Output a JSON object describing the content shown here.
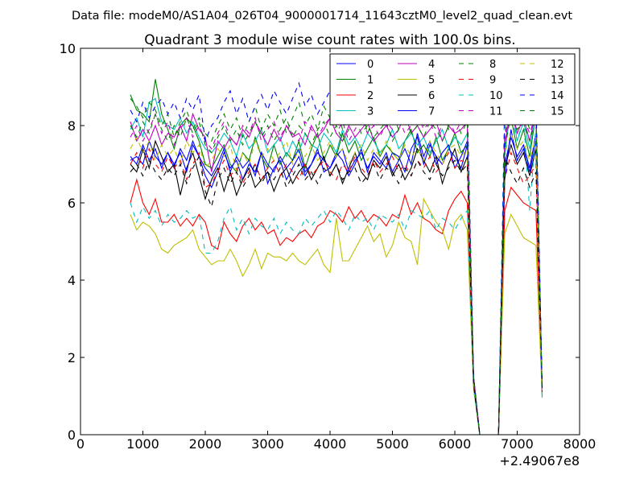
{
  "header_text": "Data file: modeM0/AS1A04_026T04_9000001714_11643cztM0_level2_quad_clean.evt",
  "chart_data": {
    "type": "line",
    "title": "Quadrant 3 module wise count rates with 100.0s bins.",
    "xlabel": "",
    "ylabel": "",
    "x_offset_label": "+2.49067e8",
    "xlim": [
      0,
      8000
    ],
    "ylim": [
      0,
      10
    ],
    "x_ticks": [
      0,
      1000,
      2000,
      3000,
      4000,
      5000,
      6000,
      7000,
      8000
    ],
    "y_ticks": [
      0,
      2,
      4,
      6,
      8,
      10
    ],
    "grid": false,
    "legend_placement": "top-right",
    "legend_columns": 4,
    "x": [
      800,
      900,
      1000,
      1100,
      1200,
      1300,
      1400,
      1500,
      1600,
      1700,
      1800,
      1900,
      2000,
      2100,
      2200,
      2300,
      2400,
      2500,
      2600,
      2700,
      2800,
      2900,
      3000,
      3100,
      3200,
      3300,
      3400,
      3500,
      3600,
      3700,
      3800,
      3900,
      4000,
      4100,
      4200,
      4300,
      4400,
      4500,
      4600,
      4700,
      4800,
      4900,
      5000,
      5100,
      5200,
      5300,
      5400,
      5500,
      5600,
      5700,
      5800,
      5900,
      6000,
      6100,
      6200,
      6300,
      6400,
      6500,
      6600,
      6700,
      6800,
      6900,
      7000,
      7100,
      7200,
      7300,
      7400
    ],
    "series": [
      {
        "name": "0",
        "color": "#0000ff",
        "dash": "solid",
        "values": [
          7.1,
          7.2,
          7.0,
          7.6,
          7.2,
          7.0,
          7.3,
          6.9,
          7.4,
          7.1,
          7.6,
          7.2,
          6.7,
          6.4,
          6.8,
          7.3,
          6.9,
          7.1,
          6.6,
          7.0,
          6.8,
          7.3,
          6.5,
          6.9,
          7.1,
          6.6,
          6.9,
          7.2,
          6.7,
          7.0,
          7.4,
          6.8,
          6.9,
          7.3,
          7.1,
          6.7,
          7.0,
          7.4,
          6.8,
          7.3,
          7.1,
          6.9,
          7.3,
          7.2,
          6.8,
          7.4,
          7.7,
          7.0,
          7.5,
          7.2,
          7.0,
          7.4,
          7.2,
          6.9,
          7.5,
          1.5,
          0,
          0,
          0,
          0,
          6.6,
          7.9,
          7.1,
          7.4,
          6.8,
          7.6,
          1.2
        ]
      },
      {
        "name": "1",
        "color": "#008000",
        "dash": "solid",
        "values": [
          8.8,
          8.4,
          8.3,
          8.1,
          9.2,
          8.3,
          7.9,
          7.4,
          8.0,
          8.2,
          8.0,
          7.6,
          7.0,
          6.9,
          7.2,
          7.5,
          7.0,
          6.8,
          7.3,
          7.1,
          7.7,
          7.2,
          6.9,
          7.5,
          7.0,
          7.3,
          7.1,
          7.6,
          6.9,
          7.4,
          7.8,
          7.1,
          7.5,
          7.2,
          7.8,
          7.3,
          7.6,
          7.1,
          7.4,
          7.7,
          7.2,
          7.5,
          7.3,
          7.1,
          7.6,
          7.9,
          7.3,
          7.5,
          7.2,
          7.7,
          7.1,
          7.4,
          7.8,
          7.3,
          7.5,
          1.4,
          0,
          0,
          0,
          0,
          7.6,
          8.2,
          7.4,
          7.9,
          7.2,
          8.3,
          1.1
        ]
      },
      {
        "name": "2",
        "color": "#ff0000",
        "dash": "solid",
        "values": [
          6.0,
          6.6,
          6.0,
          5.7,
          6.1,
          5.5,
          5.5,
          5.7,
          5.4,
          5.6,
          5.4,
          5.7,
          5.5,
          4.9,
          4.8,
          5.5,
          5.2,
          5.0,
          5.4,
          5.6,
          5.3,
          5.5,
          5.2,
          5.3,
          4.9,
          5.1,
          5.0,
          5.2,
          5.3,
          5.1,
          5.4,
          5.5,
          5.8,
          5.7,
          5.5,
          5.9,
          5.6,
          5.8,
          5.5,
          5.7,
          5.6,
          5.4,
          5.7,
          5.6,
          6.2,
          5.7,
          6.0,
          5.6,
          5.5,
          5.3,
          5.2,
          5.8,
          6.1,
          6.3,
          6.0,
          1.3,
          0,
          0,
          0,
          0,
          5.8,
          6.4,
          6.2,
          6.0,
          5.9,
          5.8,
          1.2
        ]
      },
      {
        "name": "3",
        "color": "#00bfbf",
        "dash": "solid",
        "values": [
          7.9,
          8.2,
          7.7,
          8.6,
          8.7,
          8.1,
          8.0,
          7.9,
          8.2,
          7.8,
          8.1,
          7.7,
          7.4,
          7.3,
          7.5,
          7.8,
          7.6,
          7.2,
          7.8,
          7.4,
          7.6,
          7.9,
          7.3,
          7.5,
          7.7,
          7.2,
          7.6,
          7.3,
          7.8,
          7.5,
          7.4,
          7.8,
          7.6,
          7.3,
          7.9,
          7.5,
          7.7,
          7.4,
          7.8,
          7.6,
          7.3,
          7.5,
          7.9,
          7.4,
          7.6,
          7.8,
          7.5,
          7.7,
          7.3,
          7.6,
          7.9,
          7.4,
          7.7,
          7.5,
          7.8,
          1.4,
          0,
          0,
          0,
          0,
          7.2,
          8.6,
          7.6,
          8.1,
          7.4,
          8.3,
          1.0
        ]
      },
      {
        "name": "4",
        "color": "#bf00bf",
        "dash": "solid",
        "values": [
          8.1,
          7.6,
          7.9,
          7.6,
          8.0,
          7.5,
          7.8,
          7.7,
          8.0,
          7.6,
          8.3,
          7.9,
          7.7,
          6.8,
          7.6,
          7.4,
          7.7,
          7.5,
          7.9,
          7.7,
          8.1,
          7.8,
          7.5,
          7.9,
          7.6,
          8.0,
          7.7,
          7.8,
          7.5,
          8.0,
          7.7,
          7.9,
          8.2,
          7.8,
          7.6,
          8.0,
          7.7,
          7.9,
          8.1,
          7.6,
          7.8,
          8.0,
          7.7,
          7.9,
          8.3,
          7.8,
          8.0,
          7.7,
          7.9,
          8.1,
          7.6,
          8.0,
          7.8,
          7.9,
          8.1,
          1.5,
          0,
          0,
          0,
          0,
          7.5,
          8.5,
          7.8,
          8.2,
          7.6,
          8.4,
          1.1
        ]
      },
      {
        "name": "5",
        "color": "#bfbf00",
        "dash": "solid",
        "values": [
          5.7,
          5.3,
          5.5,
          5.4,
          5.2,
          4.8,
          4.7,
          4.9,
          5.0,
          5.1,
          5.3,
          4.8,
          4.6,
          4.4,
          4.5,
          4.5,
          4.8,
          4.5,
          4.1,
          4.4,
          4.8,
          4.3,
          4.7,
          4.6,
          4.6,
          4.5,
          4.7,
          4.5,
          4.4,
          4.6,
          4.8,
          4.4,
          4.2,
          5.6,
          4.5,
          4.5,
          4.8,
          5.1,
          5.4,
          5.0,
          5.2,
          4.6,
          4.9,
          5.5,
          5.1,
          5.0,
          4.4,
          6.1,
          5.8,
          5.5,
          5.3,
          4.8,
          5.5,
          5.7,
          5.3,
          1.2,
          0,
          0,
          0,
          0,
          5.2,
          5.7,
          5.4,
          5.1,
          5.0,
          4.9,
          1.0
        ]
      },
      {
        "name": "6",
        "color": "#000000",
        "dash": "solid",
        "values": [
          7.0,
          6.8,
          7.4,
          6.9,
          7.6,
          7.2,
          6.8,
          7.0,
          6.2,
          6.9,
          7.3,
          6.7,
          6.1,
          6.6,
          6.9,
          6.3,
          6.8,
          6.2,
          6.6,
          6.9,
          6.4,
          6.6,
          6.8,
          6.3,
          6.7,
          6.9,
          6.5,
          6.8,
          7.0,
          6.6,
          6.9,
          7.2,
          6.7,
          7.0,
          6.5,
          6.9,
          7.3,
          6.8,
          6.6,
          7.1,
          6.9,
          7.2,
          6.7,
          7.0,
          6.6,
          6.9,
          7.4,
          7.1,
          6.8,
          7.2,
          6.5,
          7.0,
          7.4,
          6.8,
          7.2,
          1.3,
          0,
          0,
          0,
          0,
          6.9,
          7.5,
          7.0,
          7.3,
          6.7,
          7.4,
          1.2
        ]
      },
      {
        "name": "7",
        "color": "#0000ff",
        "dash": "solid",
        "values": [
          7.2,
          7.0,
          7.5,
          7.1,
          7.4,
          6.9,
          7.3,
          7.0,
          7.3,
          6.8,
          7.5,
          7.2,
          6.9,
          6.7,
          7.0,
          7.4,
          6.8,
          7.2,
          6.9,
          7.1,
          6.7,
          7.3,
          7.0,
          6.8,
          7.2,
          6.9,
          7.1,
          7.4,
          6.8,
          7.0,
          7.3,
          7.1,
          6.9,
          7.2,
          7.4,
          6.8,
          7.1,
          7.3,
          6.9,
          7.2,
          7.0,
          7.3,
          6.8,
          7.1,
          7.4,
          7.0,
          7.8,
          7.2,
          7.6,
          7.0,
          7.3,
          7.5,
          6.9,
          7.2,
          7.6,
          1.4,
          0,
          0,
          0,
          0,
          7.0,
          7.7,
          7.2,
          7.5,
          6.9,
          7.8,
          1.1
        ]
      },
      {
        "name": "8",
        "color": "#008000",
        "dash": "dashed",
        "values": [
          8.7,
          8.5,
          8.2,
          8.6,
          8.4,
          8.0,
          8.3,
          7.7,
          8.1,
          8.4,
          7.9,
          8.2,
          7.8,
          7.6,
          8.0,
          8.3,
          7.9,
          8.2,
          7.7,
          8.1,
          8.5,
          7.9,
          8.3,
          8.0,
          8.4,
          7.8,
          8.2,
          8.6,
          8.0,
          8.3,
          7.9,
          8.5,
          8.2,
          8.4,
          7.9,
          8.3,
          8.1,
          8.5,
          7.8,
          8.2,
          8.4,
          8.0,
          8.3,
          7.9,
          8.5,
          8.2,
          8.4,
          8.0,
          8.3,
          8.1,
          8.6,
          7.9,
          8.2,
          8.4,
          8.0,
          1.5,
          0,
          0,
          0,
          0,
          7.8,
          8.6,
          8.1,
          8.4,
          7.9,
          8.5,
          1.2
        ]
      },
      {
        "name": "9",
        "color": "#ff0000",
        "dash": "dashed",
        "values": [
          7.0,
          7.3,
          6.9,
          7.4,
          7.0,
          6.8,
          7.2,
          6.9,
          7.1,
          6.6,
          7.0,
          7.3,
          6.4,
          6.5,
          6.8,
          7.1,
          6.7,
          6.9,
          6.5,
          6.8,
          7.0,
          6.6,
          6.9,
          7.1,
          6.7,
          7.0,
          6.8,
          6.6,
          7.0,
          6.7,
          6.9,
          7.1,
          6.8,
          6.6,
          7.0,
          6.8,
          7.2,
          6.9,
          6.7,
          7.1,
          6.8,
          7.0,
          7.2,
          6.8,
          7.0,
          6.7,
          7.1,
          6.9,
          7.2,
          6.8,
          7.0,
          7.3,
          6.9,
          7.1,
          7.0,
          1.3,
          0,
          0,
          0,
          0,
          6.6,
          7.3,
          6.9,
          6.5,
          6.7,
          7.0,
          1.1
        ]
      },
      {
        "name": "10",
        "color": "#00bfbf",
        "dash": "dashed",
        "values": [
          6.0,
          5.5,
          5.9,
          5.6,
          5.8,
          5.4,
          5.7,
          5.5,
          5.6,
          5.8,
          5.6,
          5.7,
          4.7,
          4.7,
          5.0,
          5.6,
          5.9,
          5.3,
          5.6,
          5.2,
          5.6,
          5.4,
          5.3,
          5.6,
          5.2,
          5.5,
          5.3,
          5.2,
          5.6,
          5.4,
          5.6,
          5.8,
          5.5,
          5.8,
          5.6,
          5.3,
          5.7,
          5.5,
          5.6,
          5.3,
          5.7,
          5.6,
          5.5,
          5.7,
          5.3,
          5.8,
          5.7,
          5.6,
          5.8,
          5.3,
          5.6,
          5.5,
          5.3,
          5.6,
          5.8,
          1.2,
          0,
          0,
          0,
          0,
          8.9,
          8.3,
          7.6,
          8.2,
          5.8,
          8.0,
          0.9
        ]
      },
      {
        "name": "11",
        "color": "#bf00bf",
        "dash": "dashed",
        "values": [
          7.7,
          8.0,
          7.6,
          7.9,
          8.3,
          7.8,
          8.1,
          7.5,
          7.9,
          8.2,
          7.7,
          8.0,
          7.6,
          7.4,
          7.8,
          8.1,
          7.7,
          7.5,
          8.0,
          7.8,
          8.2,
          7.6,
          7.9,
          8.1,
          7.7,
          8.0,
          7.8,
          7.6,
          8.1,
          7.9,
          7.7,
          8.0,
          8.2,
          7.8,
          8.1,
          7.6,
          7.9,
          8.2,
          7.8,
          8.0,
          7.7,
          8.1,
          7.9,
          8.2,
          7.8,
          8.0,
          8.3,
          7.9,
          8.1,
          7.7,
          8.0,
          8.2,
          7.8,
          8.1,
          8.0,
          1.4,
          0,
          0,
          0,
          0,
          7.7,
          8.5,
          8.0,
          8.2,
          7.8,
          8.3,
          1.0
        ]
      },
      {
        "name": "12",
        "color": "#bfbf00",
        "dash": "dashed",
        "values": [
          7.4,
          7.7,
          7.3,
          7.6,
          7.1,
          7.5,
          7.2,
          7.4,
          7.0,
          7.6,
          7.3,
          7.5,
          6.9,
          7.1,
          7.4,
          7.2,
          7.5,
          6.8,
          7.3,
          7.0,
          7.6,
          7.2,
          7.4,
          7.1,
          7.3,
          7.6,
          7.0,
          7.4,
          7.2,
          7.5,
          7.1,
          7.3,
          7.6,
          7.2,
          7.4,
          7.0,
          7.3,
          7.5,
          7.1,
          7.4,
          7.2,
          7.6,
          7.3,
          7.1,
          7.5,
          7.2,
          7.4,
          7.1,
          7.6,
          7.3,
          7.0,
          7.4,
          7.5,
          7.2,
          7.4,
          1.3,
          0,
          0,
          0,
          0,
          7.3,
          7.8,
          7.4,
          7.6,
          7.1,
          7.7,
          1.1
        ]
      },
      {
        "name": "13",
        "color": "#000000",
        "dash": "dashed",
        "values": [
          6.8,
          7.0,
          6.7,
          7.1,
          6.8,
          6.6,
          6.9,
          6.7,
          7.0,
          6.5,
          6.9,
          7.2,
          6.3,
          5.9,
          6.6,
          6.9,
          6.5,
          6.8,
          6.4,
          6.7,
          7.0,
          6.5,
          6.8,
          6.6,
          6.9,
          6.4,
          6.7,
          7.0,
          6.6,
          6.8,
          6.5,
          6.9,
          6.7,
          7.0,
          6.6,
          6.8,
          6.9,
          6.5,
          6.7,
          7.0,
          6.6,
          6.9,
          6.8,
          6.5,
          6.9,
          6.7,
          7.1,
          6.8,
          6.6,
          7.0,
          6.7,
          6.9,
          7.1,
          6.8,
          7.0,
          1.3,
          0,
          0,
          0,
          0,
          7.2,
          6.8,
          6.5,
          6.9,
          6.4,
          6.8,
          1.2
        ]
      },
      {
        "name": "14",
        "color": "#0000ff",
        "dash": "dashed",
        "values": [
          8.4,
          8.1,
          8.6,
          8.2,
          8.5,
          8.7,
          8.3,
          8.6,
          8.2,
          8.7,
          8.4,
          8.8,
          7.6,
          8.0,
          8.2,
          8.6,
          8.9,
          8.3,
          8.7,
          8.1,
          8.5,
          8.8,
          8.4,
          8.9,
          8.6,
          8.3,
          8.7,
          9.1,
          8.5,
          8.8,
          8.3,
          8.6,
          8.9,
          8.4,
          8.7,
          8.2,
          8.6,
          8.9,
          8.5,
          8.8,
          8.3,
          8.7,
          8.5,
          8.9,
          8.6,
          8.4,
          9.3,
          8.6,
          8.9,
          8.5,
          8.8,
          8.4,
          8.7,
          8.9,
          8.6,
          1.5,
          0,
          0,
          0,
          0,
          8.2,
          8.8,
          8.4,
          8.6,
          8.3,
          8.7,
          1.2
        ]
      },
      {
        "name": "15",
        "color": "#008000",
        "dash": "dashed",
        "values": [
          8.0,
          7.7,
          8.1,
          7.8,
          8.3,
          7.9,
          7.6,
          8.0,
          7.7,
          8.2,
          7.8,
          8.1,
          7.5,
          7.3,
          7.7,
          8.0,
          7.6,
          7.9,
          7.5,
          7.8,
          8.1,
          7.7,
          8.0,
          7.6,
          7.9,
          8.2,
          7.7,
          8.0,
          7.8,
          7.5,
          7.9,
          8.1,
          7.7,
          8.0,
          7.6,
          7.9,
          8.2,
          7.8,
          8.0,
          7.7,
          7.9,
          8.1,
          7.6,
          7.9,
          8.2,
          7.8,
          8.0,
          7.7,
          8.1,
          7.9,
          7.6,
          8.0,
          8.2,
          7.8,
          8.1,
          1.4,
          0,
          0,
          0,
          0,
          7.4,
          8.3,
          7.9,
          8.1,
          7.6,
          8.2,
          1.1
        ]
      }
    ]
  }
}
